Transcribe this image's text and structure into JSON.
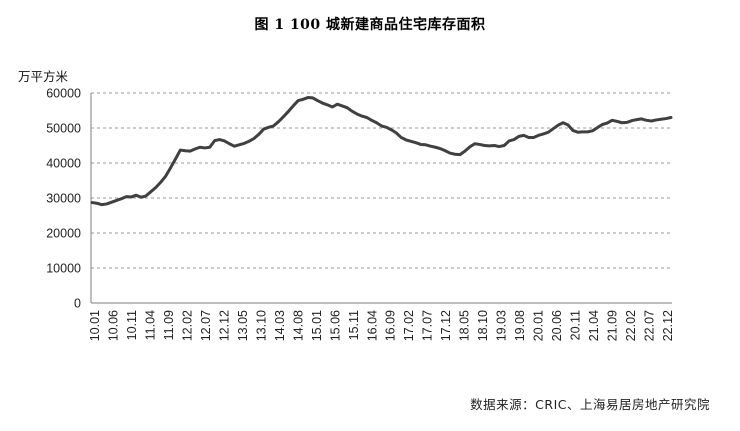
{
  "chart_data": {
    "type": "line",
    "title": "图 1   100 城新建商品住宅库存面积",
    "ylabel": "万平方米",
    "xlabel": "",
    "source": "数据来源：CRIC、上海易居房地产研究院",
    "ylim": [
      0,
      60000
    ],
    "yticks": [
      "0",
      "10000",
      "20000",
      "30000",
      "40000",
      "50000",
      "60000"
    ],
    "xtick_labels": [
      "10.01",
      "10.06",
      "10.11",
      "11.04",
      "11.09",
      "12.02",
      "12.07",
      "12.12",
      "13.05",
      "13.10",
      "14.03",
      "14.08",
      "15.01",
      "15.06",
      "15.11",
      "16.04",
      "16.09",
      "17.02",
      "17.07",
      "17.12",
      "18.05",
      "18.10",
      "19.03",
      "19.08",
      "20.01",
      "20.06",
      "20.11",
      "21.04",
      "21.09",
      "22.02",
      "22.07",
      "22.12"
    ],
    "grid": "horizontal-dashed",
    "line_color": "#404040",
    "series": [
      {
        "values": [
          28700,
          28500,
          28100,
          28300,
          28800,
          29300,
          29800,
          30400,
          30300,
          30800,
          30200,
          30600,
          31800,
          33000,
          34500,
          36200,
          38600,
          41100,
          43700,
          43500,
          43400,
          44000,
          44500,
          44300,
          44500,
          46400,
          46700,
          46300,
          45500,
          44800,
          45200,
          45600,
          46200,
          47000,
          48200,
          49700,
          50200,
          50600,
          51800,
          53200,
          54700,
          56300,
          57800,
          58200,
          58700,
          58600,
          57800,
          57100,
          56600,
          56000,
          56800,
          56300,
          55800,
          54800,
          54000,
          53400,
          53000,
          52200,
          51500,
          50600,
          50200,
          49500,
          48600,
          47300,
          46600,
          46200,
          45800,
          45300,
          45200,
          44800,
          44500,
          44100,
          43500,
          42800,
          42500,
          42400,
          43400,
          44600,
          45500,
          45300,
          45000,
          44900,
          45000,
          44700,
          45000,
          46300,
          46700,
          47600,
          47900,
          47300,
          47300,
          47900,
          48300,
          48800,
          49800,
          50800,
          51500,
          50900,
          49300,
          48800,
          48900,
          48900,
          49200,
          50100,
          51000,
          51400,
          52200,
          51900,
          51500,
          51600,
          52100,
          52400,
          52600,
          52200,
          52000,
          52300,
          52500,
          52700,
          53000
        ]
      }
    ]
  }
}
